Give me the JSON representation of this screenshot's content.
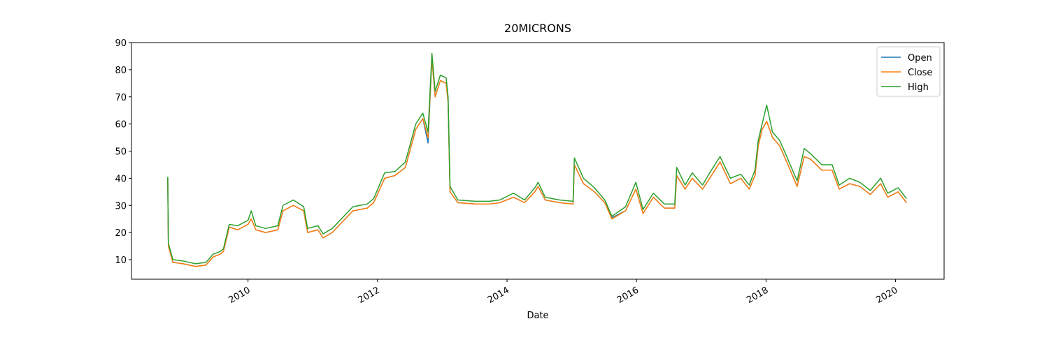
{
  "chart_data": {
    "type": "line",
    "title": "20MICRONS",
    "xlabel": "Date",
    "x": [
      2008.76,
      2008.77,
      2008.84,
      2009.0,
      2009.19,
      2009.35,
      2009.46,
      2009.57,
      2009.62,
      2009.71,
      2009.84,
      2010.0,
      2010.05,
      2010.12,
      2010.27,
      2010.46,
      2010.54,
      2010.7,
      2010.86,
      2010.92,
      2011.08,
      2011.16,
      2011.3,
      2011.46,
      2011.62,
      2011.84,
      2011.94,
      2012.11,
      2012.27,
      2012.43,
      2012.59,
      2012.7,
      2012.78,
      2012.84,
      2012.89,
      2012.97,
      2013.06,
      2013.09,
      2013.12,
      2013.24,
      2013.51,
      2013.73,
      2013.89,
      2014.1,
      2014.27,
      2014.43,
      2014.48,
      2014.59,
      2014.81,
      2015.02,
      2015.04,
      2015.18,
      2015.35,
      2015.51,
      2015.62,
      2015.83,
      2015.99,
      2016.1,
      2016.26,
      2016.43,
      2016.59,
      2016.62,
      2016.75,
      2016.86,
      2017.02,
      2017.13,
      2017.29,
      2017.45,
      2017.61,
      2017.74,
      2017.83,
      2017.88,
      2017.94,
      2018.01,
      2018.1,
      2018.21,
      2018.32,
      2018.48,
      2018.59,
      2018.69,
      2018.86,
      2019.02,
      2019.13,
      2019.29,
      2019.45,
      2019.61,
      2019.77,
      2019.88,
      2020.04,
      2020.17
    ],
    "series": [
      {
        "name": "Open",
        "color": "#1f77b4",
        "values": [
          40,
          15,
          9,
          8.5,
          7.5,
          8,
          11,
          12,
          13,
          22,
          21,
          23,
          25,
          21,
          20,
          21,
          28,
          30,
          28,
          20,
          21,
          18,
          20,
          24,
          28,
          29,
          31,
          40,
          41,
          44,
          58,
          62,
          53,
          84,
          70,
          76,
          75,
          68,
          35,
          31,
          30.5,
          30.5,
          31,
          33,
          31,
          35,
          37,
          32,
          31,
          30.5,
          45,
          38,
          35,
          31,
          25.5,
          28,
          36,
          27,
          33,
          29,
          29,
          41,
          36,
          40,
          36,
          40,
          46,
          38,
          40,
          36,
          41,
          52,
          58,
          61,
          55,
          52,
          46,
          37,
          48,
          47,
          43,
          43,
          36,
          38,
          37,
          34,
          38,
          33,
          35,
          31
        ]
      },
      {
        "name": "Close",
        "color": "#ff7f0e",
        "values": [
          40,
          15,
          9,
          8.5,
          7.5,
          8,
          11,
          12,
          13,
          22,
          21,
          23,
          25,
          21,
          20,
          21,
          28,
          30,
          28,
          20,
          21,
          18,
          20,
          24,
          28,
          29,
          31,
          40,
          41,
          44,
          58,
          62,
          55,
          84,
          70,
          76,
          75,
          68,
          35,
          31,
          30.5,
          30.5,
          31,
          33,
          31,
          35,
          37,
          32,
          31,
          30.5,
          45,
          38,
          35,
          31,
          25,
          28,
          36,
          27,
          33,
          29,
          29,
          41,
          36,
          40,
          36,
          40,
          46,
          38,
          40,
          36,
          41,
          52,
          58,
          61,
          55,
          52,
          46,
          37,
          48,
          47,
          43,
          43,
          36,
          38,
          37,
          34,
          38,
          33,
          35,
          31
        ]
      },
      {
        "name": "High",
        "color": "#2ca02c",
        "values": [
          40.5,
          16,
          10,
          9.5,
          8.5,
          9,
          12,
          13,
          14,
          23,
          22.5,
          24.5,
          28,
          22.5,
          21.5,
          22.5,
          30,
          32,
          29.5,
          21.5,
          22.5,
          19.5,
          21.5,
          25.5,
          29.5,
          30.5,
          32.5,
          42,
          42.5,
          46,
          60,
          64,
          57,
          86,
          72,
          78,
          77,
          70,
          37,
          32,
          31.5,
          31.5,
          32,
          34.5,
          32,
          36.5,
          38.5,
          33,
          32,
          31.5,
          47.5,
          40,
          36.5,
          32,
          26,
          29.5,
          38.5,
          28.5,
          34.5,
          30.5,
          30.5,
          44,
          37.5,
          42,
          37.5,
          42,
          48,
          40,
          41.5,
          37.5,
          43,
          54,
          60,
          67,
          57,
          54,
          48,
          39,
          51,
          49,
          45,
          45,
          37.5,
          40,
          38.5,
          35.5,
          40,
          34.5,
          36.5,
          32.5
        ]
      }
    ],
    "xlim": [
      2008.2,
      2020.75
    ],
    "xticks": [
      2010,
      2012,
      2014,
      2016,
      2018,
      2020
    ],
    "ylim": [
      2.8,
      90
    ],
    "yticks": [
      10,
      20,
      30,
      40,
      50,
      60,
      70,
      80,
      90
    ],
    "legend": "upper right"
  }
}
